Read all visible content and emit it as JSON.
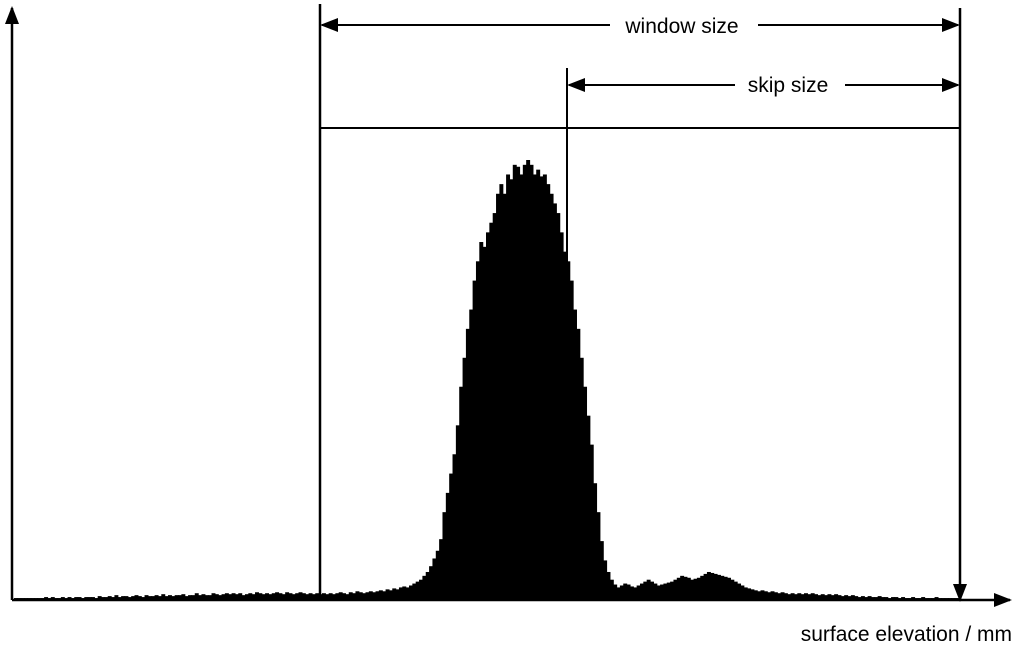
{
  "chart_data": {
    "type": "histogram",
    "title": "",
    "xlabel": "surface elevation / mm",
    "ylabel": "",
    "bin_heights": [
      1,
      1,
      1,
      1,
      1,
      1,
      1,
      1,
      1,
      2,
      1,
      2,
      1,
      1,
      2,
      1,
      2,
      1,
      2,
      2,
      1,
      2,
      2,
      2,
      1,
      3,
      2,
      2,
      3,
      2,
      4,
      2,
      3,
      3,
      2,
      3,
      4,
      3,
      2,
      4,
      3,
      3,
      4,
      3,
      5,
      3,
      4,
      3,
      4,
      4,
      5,
      3,
      4,
      4,
      6,
      4,
      5,
      4,
      4,
      6,
      5,
      4,
      5,
      6,
      5,
      6,
      5,
      6,
      4,
      5,
      6,
      5,
      7,
      6,
      5,
      6,
      5,
      6,
      7,
      6,
      5,
      7,
      6,
      5,
      6,
      7,
      6,
      5,
      6,
      5,
      6,
      5,
      6,
      5,
      6,
      5,
      6,
      7,
      6,
      5,
      7,
      6,
      8,
      7,
      6,
      7,
      8,
      7,
      8,
      9,
      8,
      10,
      9,
      11,
      10,
      12,
      13,
      12,
      14,
      16,
      18,
      20,
      24,
      28,
      34,
      42,
      50,
      62,
      90,
      110,
      130,
      150,
      180,
      220,
      250,
      280,
      300,
      330,
      350,
      370,
      365,
      380,
      390,
      400,
      420,
      430,
      420,
      440,
      435,
      450,
      448,
      440,
      450,
      455,
      450,
      440,
      445,
      438,
      440,
      430,
      420,
      410,
      400,
      380,
      360,
      350,
      330,
      300,
      280,
      250,
      220,
      190,
      160,
      120,
      90,
      60,
      40,
      28,
      20,
      15,
      12,
      14,
      16,
      15,
      13,
      12,
      14,
      16,
      18,
      20,
      18,
      16,
      14,
      15,
      16,
      17,
      18,
      20,
      22,
      24,
      23,
      22,
      20,
      21,
      22,
      24,
      26,
      28,
      27,
      26,
      25,
      24,
      23,
      22,
      20,
      18,
      16,
      14,
      12,
      11,
      10,
      9,
      8,
      9,
      8,
      7,
      8,
      7,
      6,
      7,
      6,
      5,
      6,
      5,
      6,
      5,
      6,
      5,
      6,
      5,
      4,
      5,
      4,
      5,
      4,
      5,
      4,
      3,
      4,
      3,
      4,
      3,
      2,
      3,
      2,
      3,
      2,
      2,
      3,
      2,
      2,
      1,
      2,
      2,
      1,
      2,
      1,
      1,
      2,
      1,
      1,
      2,
      1,
      1,
      1,
      2,
      1,
      1,
      1,
      1,
      1,
      1
    ],
    "annotations": {
      "window_label": "window size",
      "skip_label": "skip size"
    }
  }
}
